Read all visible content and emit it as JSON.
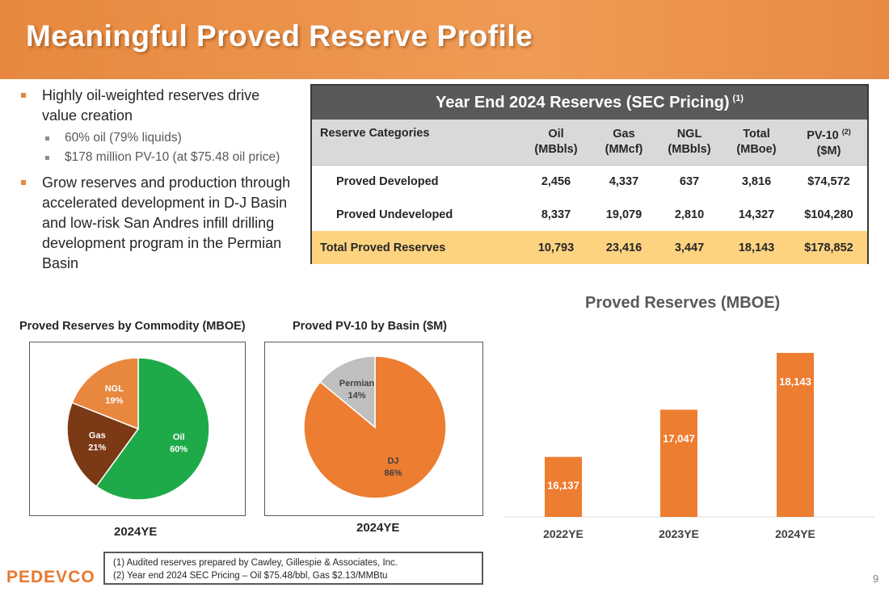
{
  "header": {
    "title": "Meaningful Proved Reserve Profile"
  },
  "bullets": [
    {
      "text": "Highly oil-weighted reserves drive value creation",
      "sub": [
        "60% oil (79% liquids)",
        "$178 million PV-10 (at $75.48 oil price)"
      ]
    },
    {
      "text": "Grow reserves and production through accelerated development in D-J Basin and low-risk San Andres infill drilling development program in the Permian Basin",
      "sub": []
    }
  ],
  "table": {
    "title": "Year End 2024 Reserves (SEC Pricing)",
    "title_note": "(1)",
    "columns": [
      {
        "label": "Reserve Categories",
        "unit": "",
        "note": ""
      },
      {
        "label": "Oil",
        "unit": "(MBbls)",
        "note": ""
      },
      {
        "label": "Gas",
        "unit": "(MMcf)",
        "note": ""
      },
      {
        "label": "NGL",
        "unit": "(MBbls)",
        "note": ""
      },
      {
        "label": "Total",
        "unit": "(MBoe)",
        "note": ""
      },
      {
        "label": "PV-10",
        "unit": "($M)",
        "note": "(2)"
      }
    ],
    "rows": [
      [
        "Proved Developed",
        "2,456",
        "4,337",
        "637",
        "3,816",
        "$74,572"
      ],
      [
        "Proved Undeveloped",
        "8,337",
        "19,079",
        "2,810",
        "14,327",
        "$104,280"
      ],
      [
        "Total Proved Reserves",
        "10,793",
        "23,416",
        "3,447",
        "18,143",
        "$178,852"
      ]
    ]
  },
  "chart_data": [
    {
      "type": "pie",
      "title": "Proved Reserves by Commodity (MBOE)",
      "xlabel": "2024YE",
      "slices": [
        {
          "label": "Oil",
          "value": 60,
          "display": "60%",
          "color": "#1faa49",
          "text_color": "#ffffff"
        },
        {
          "label": "Gas",
          "value": 21,
          "display": "21%",
          "color": "#7b3915",
          "text_color": "#ffffff"
        },
        {
          "label": "NGL",
          "value": 19,
          "display": "19%",
          "color": "#e7883e",
          "text_color": "#ffffff"
        }
      ]
    },
    {
      "type": "pie",
      "title": "Proved PV-10 by Basin ($M)",
      "xlabel": "2024YE",
      "slices": [
        {
          "label": "DJ",
          "value": 86,
          "display": "86%",
          "color": "#ed7d31",
          "text_color": "#404040"
        },
        {
          "label": "Permian",
          "value": 14,
          "display": "14%",
          "color": "#bfbfbf",
          "text_color": "#404040"
        }
      ]
    },
    {
      "type": "bar",
      "title": "Proved Reserves (MBOE)",
      "categories": [
        "2022YE",
        "2023YE",
        "2024YE"
      ],
      "values": [
        16137,
        17047,
        18143
      ],
      "labels": [
        "16,137",
        "17,047",
        "18,143"
      ],
      "ylim": [
        14980,
        18500
      ],
      "color": "#ed7d31"
    }
  ],
  "footnotes": [
    "(1)   Audited reserves prepared by Cawley, Gillespie & Associates, Inc.",
    "(2)   Year end 2024 SEC Pricing – Oil $75.48/bbl, Gas $2.13/MMBtu"
  ],
  "logo": {
    "text": "PEDEVCO"
  },
  "page_number": "9"
}
